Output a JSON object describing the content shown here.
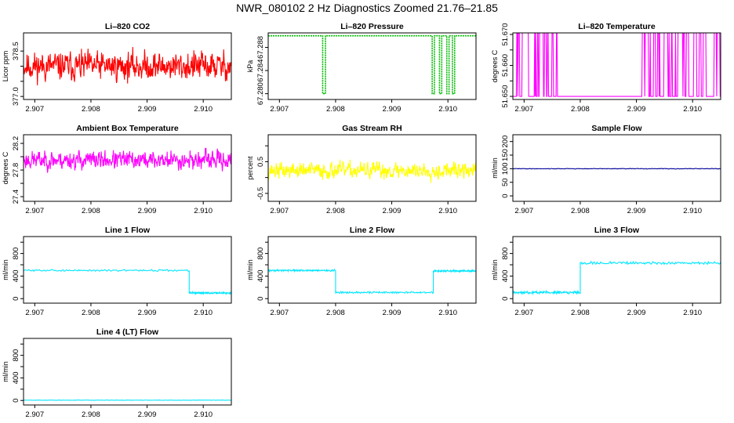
{
  "figure_title": "NWR_080102  2 Hz Diagnostics Zoomed 21.76–21.85",
  "chart_data": [
    {
      "type": "line",
      "title": "Li–820 CO2",
      "ylabel": "Licor ppm",
      "color": "#ff0000",
      "xlim": [
        2.9068,
        2.9105
      ],
      "xticks": [
        "2.907",
        "2.908",
        "2.909",
        "2.910"
      ],
      "xtick_values": [
        2.907,
        2.908,
        2.909,
        2.91
      ],
      "ylim": [
        376.9,
        379.1
      ],
      "yticks": [
        "377.0",
        "377.5",
        "378.0",
        "378.5"
      ],
      "ytick_values": [
        377.0,
        377.5,
        378.0,
        378.5
      ],
      "yticks_shown": [
        "377.0",
        "378.5"
      ],
      "series": {
        "generator": "noise",
        "mean": 378.0,
        "amp": 0.55,
        "seed": 11,
        "points": 600
      }
    },
    {
      "type": "line",
      "title": "Li–820 Pressure",
      "ylabel": "kPa",
      "color": "#00bb00",
      "xlim": [
        2.9068,
        2.9105
      ],
      "xticks": [
        "2.907",
        "2.908",
        "2.909",
        "2.910"
      ],
      "xtick_values": [
        2.907,
        2.908,
        2.909,
        2.91
      ],
      "ylim": [
        67.279,
        67.2905
      ],
      "yticks": [
        "67.280",
        "67.284",
        "67.288"
      ],
      "ytick_values": [
        67.28,
        67.284,
        67.288
      ],
      "yticks_shown": [
        "67.280",
        "67.284",
        "67.288"
      ],
      "series": {
        "generator": "steps",
        "levels": [
          67.28,
          67.29
        ],
        "default": 1,
        "low_intervals": [
          [
            2.90777,
            2.90782
          ],
          [
            2.90972,
            2.90976
          ],
          [
            2.90985,
            2.90989
          ],
          [
            2.90998,
            2.91002
          ],
          [
            2.91008,
            2.91012
          ]
        ]
      }
    },
    {
      "type": "line",
      "title": "Li–820 Temperature",
      "ylabel": "degrees C",
      "color": "#ff00ff",
      "xlim": [
        2.9068,
        2.9105
      ],
      "xticks": [
        "2.907",
        "2.908",
        "2.909",
        "2.910"
      ],
      "xtick_values": [
        2.907,
        2.908,
        2.909,
        2.91
      ],
      "ylim": [
        51.649,
        51.6705
      ],
      "yticks": [
        "51.650",
        "51.655",
        "51.660",
        "51.665",
        "51.670"
      ],
      "ytick_values": [
        51.65,
        51.655,
        51.66,
        51.665,
        51.67
      ],
      "yticks_shown": [
        "51.650",
        "51.660",
        "51.670"
      ],
      "series": {
        "generator": "binary",
        "levels": [
          51.65,
          51.6705
        ],
        "seed": 5,
        "quiet": [
          [
            2.9076,
            2.9091
          ]
        ]
      }
    },
    {
      "type": "line",
      "title": "Ambient Box Temperature",
      "ylabel": "degrees C",
      "color": "#ff00ff",
      "xlim": [
        2.9068,
        2.9105
      ],
      "xticks": [
        "2.907",
        "2.908",
        "2.909",
        "2.910"
      ],
      "xtick_values": [
        2.907,
        2.908,
        2.909,
        2.91
      ],
      "ylim": [
        27.33,
        28.33
      ],
      "yticks": [
        "27.4",
        "27.6",
        "27.8",
        "28.0",
        "28.2"
      ],
      "ytick_values": [
        27.4,
        27.6,
        27.8,
        28.0,
        28.2
      ],
      "yticks_shown": [
        "27.4",
        "27.8",
        "28.2"
      ],
      "series": {
        "generator": "noise",
        "mean": 27.95,
        "amp": 0.16,
        "seed": 23,
        "points": 600
      }
    },
    {
      "type": "line",
      "title": "Gas Stream RH",
      "ylabel": "percent",
      "color": "#ffff00",
      "xlim": [
        2.9068,
        2.9105
      ],
      "xticks": [
        "2.907",
        "2.908",
        "2.909",
        "2.910"
      ],
      "xtick_values": [
        2.907,
        2.908,
        2.909,
        2.91
      ],
      "ylim": [
        -0.75,
        1.35
      ],
      "yticks": [
        "-0.5",
        "0.0",
        "0.5",
        "1.0"
      ],
      "ytick_values": [
        -0.5,
        0.0,
        0.5,
        1.0
      ],
      "yticks_shown": [
        "-0.5",
        "0.5"
      ],
      "series": {
        "generator": "noise",
        "mean": 0.22,
        "amp": 0.3,
        "seed": 37,
        "points": 600
      }
    },
    {
      "type": "line",
      "title": "Sample Flow",
      "ylabel": "ml/min",
      "color": "#000099",
      "xlim": [
        2.9068,
        2.9105
      ],
      "xticks": [
        "2.907",
        "2.908",
        "2.909",
        "2.910"
      ],
      "xtick_values": [
        2.907,
        2.908,
        2.909,
        2.91
      ],
      "ylim": [
        -20,
        225
      ],
      "yticks": [
        "0",
        "50",
        "100",
        "150",
        "200"
      ],
      "ytick_values": [
        0,
        50,
        100,
        150,
        200
      ],
      "yticks_shown": [
        "0",
        "50",
        "100",
        "150",
        "200"
      ],
      "series": {
        "generator": "noise",
        "mean": 100,
        "amp": 1.2,
        "seed": 41,
        "points": 400
      }
    },
    {
      "type": "line",
      "title": "Line 1 Flow",
      "ylabel": "ml/min",
      "color": "#00e5ff",
      "xlim": [
        2.9068,
        2.9105
      ],
      "xticks": [
        "2.907",
        "2.908",
        "2.909",
        "2.910"
      ],
      "xtick_values": [
        2.907,
        2.908,
        2.909,
        2.91
      ],
      "ylim": [
        -80,
        1100
      ],
      "yticks": [
        "0",
        "200",
        "400",
        "600",
        "800",
        "1000"
      ],
      "ytick_values": [
        0,
        200,
        400,
        600,
        800,
        1000
      ],
      "yticks_shown": [
        "0",
        "400",
        "800"
      ],
      "series": {
        "generator": "segments",
        "amp": 12,
        "seed": 3,
        "segments": [
          [
            2.9068,
            2.90975,
            500
          ],
          [
            2.90975,
            2.9105,
            100
          ]
        ]
      }
    },
    {
      "type": "line",
      "title": "Line 2 Flow",
      "ylabel": "ml/min",
      "color": "#00e5ff",
      "xlim": [
        2.9068,
        2.9105
      ],
      "xticks": [
        "2.907",
        "2.908",
        "2.909",
        "2.910"
      ],
      "xtick_values": [
        2.907,
        2.908,
        2.909,
        2.91
      ],
      "ylim": [
        -80,
        1100
      ],
      "yticks": [
        "0",
        "200",
        "400",
        "600",
        "800",
        "1000"
      ],
      "ytick_values": [
        0,
        200,
        400,
        600,
        800,
        1000
      ],
      "yticks_shown": [
        "0",
        "400",
        "800"
      ],
      "series": {
        "generator": "segments",
        "amp": 12,
        "seed": 9,
        "segments": [
          [
            2.9068,
            2.908,
            500
          ],
          [
            2.908,
            2.90974,
            110
          ],
          [
            2.90974,
            2.9105,
            490
          ]
        ]
      }
    },
    {
      "type": "line",
      "title": "Line 3 Flow",
      "ylabel": "ml/min",
      "color": "#00e5ff",
      "xlim": [
        2.9068,
        2.9105
      ],
      "xticks": [
        "2.907",
        "2.908",
        "2.909",
        "2.910"
      ],
      "xtick_values": [
        2.907,
        2.908,
        2.909,
        2.91
      ],
      "ylim": [
        -80,
        1100
      ],
      "yticks": [
        "0",
        "200",
        "400",
        "600",
        "800",
        "1000"
      ],
      "ytick_values": [
        0,
        200,
        400,
        600,
        800,
        1000
      ],
      "yticks_shown": [
        "0",
        "400",
        "800"
      ],
      "series": {
        "generator": "segments",
        "amp": 18,
        "seed": 17,
        "segments": [
          [
            2.9068,
            2.908,
            110
          ],
          [
            2.908,
            2.9105,
            630
          ]
        ]
      }
    },
    {
      "type": "line",
      "title": "Line 4 (LT) Flow",
      "ylabel": "ml/min",
      "color": "#00e5ff",
      "xlim": [
        2.9068,
        2.9105
      ],
      "xticks": [
        "2.907",
        "2.908",
        "2.909",
        "2.910"
      ],
      "xtick_values": [
        2.907,
        2.908,
        2.909,
        2.91
      ],
      "ylim": [
        -80,
        1100
      ],
      "yticks": [
        "0",
        "200",
        "400",
        "600",
        "800",
        "1000"
      ],
      "ytick_values": [
        0,
        200,
        400,
        600,
        800,
        1000
      ],
      "yticks_shown": [
        "0",
        "400",
        "800"
      ],
      "series": {
        "generator": "segments",
        "amp": 2,
        "seed": 29,
        "segments": [
          [
            2.9068,
            2.9105,
            5
          ]
        ]
      }
    }
  ]
}
